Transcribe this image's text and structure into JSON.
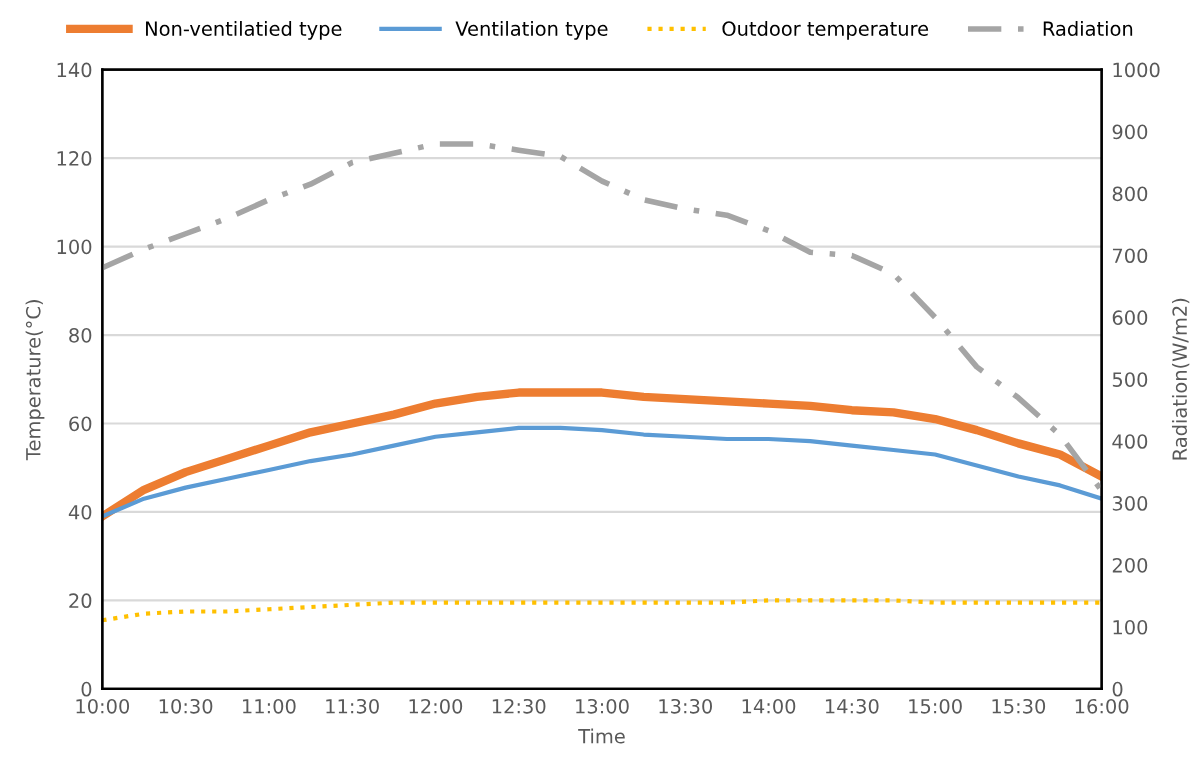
{
  "chart_data": {
    "type": "line",
    "xlabel": "Time",
    "ylabel": "Temperature(°C)",
    "y2label": "Radiation(W/m2)",
    "x": [
      10,
      10.25,
      10.5,
      10.75,
      11,
      11.25,
      11.5,
      11.75,
      12,
      12.25,
      12.5,
      12.75,
      13,
      13.25,
      13.5,
      13.75,
      14,
      14.25,
      14.5,
      14.75,
      15,
      15.25,
      15.5,
      15.75,
      16
    ],
    "series": [
      {
        "name": "Non-ventilatied type",
        "color": "#ed7d31",
        "line_style": "solid",
        "values": [
          39,
          45,
          49,
          52,
          55,
          58,
          60,
          62,
          64.5,
          66,
          67,
          67,
          67,
          66,
          65.5,
          65,
          64.5,
          64,
          63,
          62.5,
          61,
          58.5,
          55.5,
          53,
          48
        ]
      },
      {
        "name": "Ventilation type",
        "color": "#5b9bd5",
        "line_style": "solid",
        "values": [
          39,
          43,
          45.5,
          47.5,
          49.5,
          51.5,
          53,
          55,
          57,
          58,
          59,
          59,
          58.5,
          57.5,
          57,
          56.5,
          56.5,
          56,
          55,
          54,
          53,
          50.5,
          48,
          46,
          43
        ]
      },
      {
        "name": "Outdoor temperature",
        "color": "#ffc000",
        "line_style": "dotted",
        "values": [
          15.5,
          17,
          17.5,
          17.5,
          18,
          18.5,
          19,
          19.5,
          19.5,
          19.5,
          19.5,
          19.5,
          19.5,
          19.5,
          19.5,
          19.5,
          20,
          20,
          20,
          20,
          19.5,
          19.5,
          19.5,
          19.5,
          19.5
        ]
      },
      {
        "name": "Radiation",
        "color": "#a5a5a5",
        "line_style": "dashed",
        "axis": "y2",
        "values": [
          680,
          710,
          735,
          760,
          790,
          815,
          850,
          865,
          880,
          880,
          870,
          860,
          820,
          790,
          775,
          765,
          740,
          705,
          700,
          670,
          600,
          520,
          470,
          410,
          320
        ]
      }
    ],
    "xlim": [
      10,
      16
    ],
    "xticks": [
      {
        "value": 10,
        "label": "10:00"
      },
      {
        "value": 10.5,
        "label": "10:30"
      },
      {
        "value": 11,
        "label": "11:00"
      },
      {
        "value": 11.5,
        "label": "11:30"
      },
      {
        "value": 12,
        "label": "12:00"
      },
      {
        "value": 12.5,
        "label": "12:30"
      },
      {
        "value": 13,
        "label": "13:00"
      },
      {
        "value": 13.5,
        "label": "13:30"
      },
      {
        "value": 14,
        "label": "14:00"
      },
      {
        "value": 14.5,
        "label": "14:30"
      },
      {
        "value": 15,
        "label": "15:00"
      },
      {
        "value": 15.5,
        "label": "15:30"
      },
      {
        "value": 16,
        "label": "16:00"
      }
    ],
    "ylim": [
      0,
      140
    ],
    "yticks": [
      0,
      20,
      40,
      60,
      80,
      100,
      120,
      140
    ],
    "y2lim": [
      0,
      1000
    ],
    "y2ticks": [
      0,
      100,
      200,
      300,
      400,
      500,
      600,
      700,
      800,
      900,
      1000
    ],
    "grid": "y",
    "legend": "top"
  }
}
